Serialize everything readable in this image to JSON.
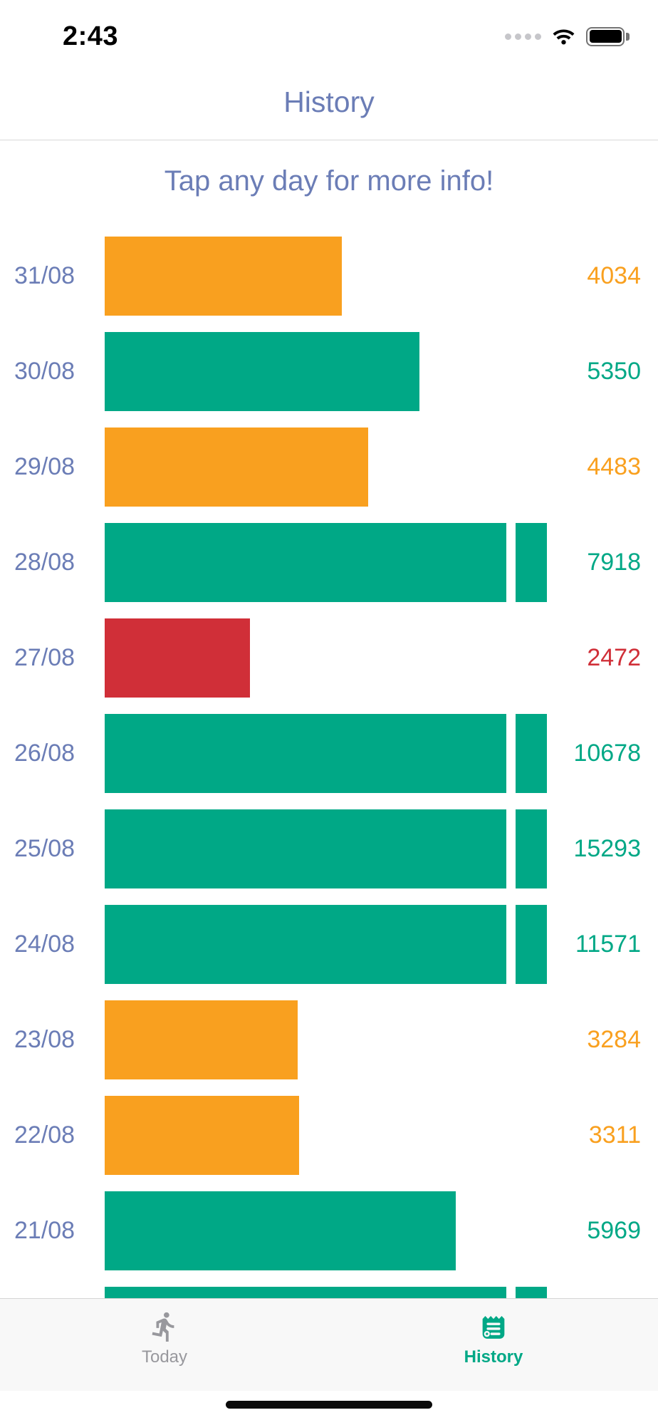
{
  "status_bar": {
    "time": "2:43"
  },
  "header": {
    "title": "History"
  },
  "subtitle": "Tap any day for more info!",
  "colors": {
    "accent_blue": "#6b7db6",
    "green": "#00a886",
    "orange": "#f9a01f",
    "red": "#d02f38",
    "tab_inactive": "#98989d"
  },
  "icons": {
    "status": [
      "cellular-dots",
      "wifi",
      "battery-full"
    ],
    "tabs": [
      "walking-person",
      "history-scroll"
    ]
  },
  "chart_data": {
    "type": "bar",
    "orientation": "horizontal",
    "title": "History",
    "value_label_position": "right",
    "notes": "Bar length proportional to daily count; long bars are capped and show a detached overflow notch. Color encodes activity level (red/orange/green).",
    "days": [
      {
        "date": "31/08",
        "value": 4034,
        "color": "orange"
      },
      {
        "date": "30/08",
        "value": 5350,
        "color": "green"
      },
      {
        "date": "29/08",
        "value": 4483,
        "color": "orange"
      },
      {
        "date": "28/08",
        "value": 7918,
        "color": "green"
      },
      {
        "date": "27/08",
        "value": 2472,
        "color": "red"
      },
      {
        "date": "26/08",
        "value": 10678,
        "color": "green"
      },
      {
        "date": "25/08",
        "value": 15293,
        "color": "green"
      },
      {
        "date": "24/08",
        "value": 11571,
        "color": "green"
      },
      {
        "date": "23/08",
        "value": 3284,
        "color": "orange"
      },
      {
        "date": "22/08",
        "value": 3311,
        "color": "orange"
      },
      {
        "date": "21/08",
        "value": 5969,
        "color": "green"
      },
      {
        "date": "",
        "value": null,
        "color": "green",
        "partial": true
      }
    ]
  },
  "tab_bar": {
    "tabs": [
      {
        "label": "Today",
        "active": false
      },
      {
        "label": "History",
        "active": true
      }
    ]
  }
}
